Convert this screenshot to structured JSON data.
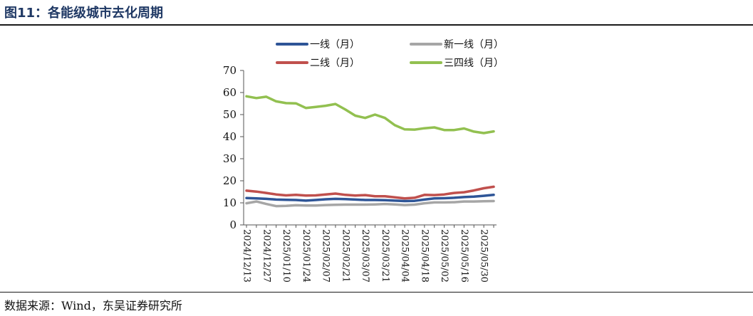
{
  "figure": {
    "title": "图11：各能级城市去化周期",
    "source": "数据来源：Wind，东吴证券研究所"
  },
  "chart_data": {
    "type": "line",
    "title": "",
    "xlabel": "",
    "ylabel": "",
    "ylim": [
      0,
      70
    ],
    "yticks": [
      0,
      10,
      20,
      30,
      40,
      50,
      60,
      70
    ],
    "grid": false,
    "legend": "top",
    "x_tick_labels": [
      "2024/12/13",
      "2024/12/27",
      "2025/01/10",
      "2025/01/24",
      "2025/02/07",
      "2025/02/21",
      "2025/03/07",
      "2025/03/21",
      "2025/04/04",
      "2025/04/18",
      "2025/05/02",
      "2025/05/16",
      "2025/05/30"
    ],
    "x": [
      "2024/12/13",
      "2024/12/20",
      "2024/12/27",
      "2025/01/03",
      "2025/01/10",
      "2025/01/17",
      "2025/01/24",
      "2025/01/31",
      "2025/02/07",
      "2025/02/14",
      "2025/02/21",
      "2025/02/28",
      "2025/03/07",
      "2025/03/14",
      "2025/03/21",
      "2025/03/28",
      "2025/04/04",
      "2025/04/11",
      "2025/04/18",
      "2025/04/25",
      "2025/05/02",
      "2025/05/09",
      "2025/05/16",
      "2025/05/23",
      "2025/05/30",
      "2025/06/06"
    ],
    "series": [
      {
        "name": "一线（月）",
        "color": "#2e5597",
        "values": [
          12.2,
          12.0,
          11.8,
          11.5,
          11.4,
          11.3,
          11.0,
          11.3,
          11.6,
          11.8,
          11.7,
          11.5,
          11.3,
          11.3,
          11.2,
          11.0,
          10.8,
          10.9,
          11.5,
          12.0,
          12.1,
          12.3,
          12.6,
          12.8,
          13.2,
          13.6
        ]
      },
      {
        "name": "新一线（月）",
        "color": "#a6a6a6",
        "values": [
          9.8,
          10.6,
          9.5,
          8.5,
          8.6,
          8.9,
          8.8,
          8.8,
          9.0,
          9.1,
          9.2,
          9.2,
          9.2,
          9.3,
          9.5,
          9.3,
          9.0,
          9.2,
          9.8,
          10.2,
          10.2,
          10.3,
          10.6,
          10.6,
          10.7,
          10.8
        ]
      },
      {
        "name": "二线（月）",
        "color": "#c0504d",
        "values": [
          15.5,
          15.1,
          14.5,
          13.8,
          13.4,
          13.6,
          13.3,
          13.4,
          13.8,
          14.2,
          13.6,
          13.3,
          13.5,
          13.0,
          13.0,
          12.5,
          12.0,
          12.3,
          13.6,
          13.5,
          13.8,
          14.5,
          14.8,
          15.6,
          16.6,
          17.3
        ]
      },
      {
        "name": "三四线（月）",
        "color": "#92c050",
        "values": [
          58.3,
          57.5,
          58.1,
          56.0,
          55.2,
          55.1,
          53.0,
          53.5,
          54.0,
          54.8,
          52.3,
          49.5,
          48.5,
          50.0,
          48.5,
          45.2,
          43.3,
          43.2,
          43.8,
          44.2,
          43.0,
          43.0,
          43.7,
          42.3,
          41.6,
          42.4
        ]
      }
    ]
  }
}
